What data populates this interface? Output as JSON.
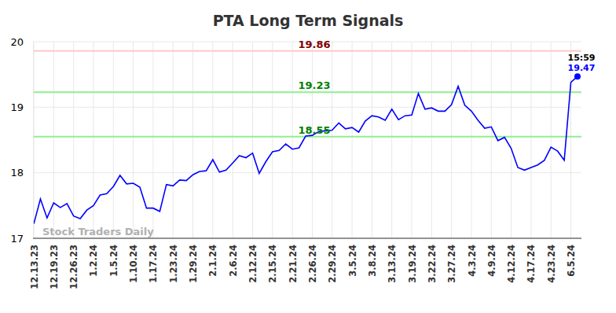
{
  "chart_data": {
    "type": "line",
    "title": "PTA Long Term Signals",
    "categories": [
      "12.13.23",
      null,
      null,
      "12.19.23",
      null,
      null,
      "12.26.23",
      null,
      null,
      "1.2.24",
      null,
      null,
      "1.5.24",
      null,
      null,
      "1.10.24",
      null,
      null,
      "1.17.24",
      null,
      null,
      "1.23.24",
      null,
      null,
      "1.29.24",
      null,
      null,
      "2.1.24",
      null,
      null,
      "2.6.24",
      null,
      null,
      "2.12.24",
      null,
      null,
      "2.15.24",
      null,
      null,
      "2.21.24",
      null,
      null,
      "2.26.24",
      null,
      null,
      "2.29.24",
      null,
      null,
      "3.5.24",
      null,
      null,
      "3.8.24",
      null,
      null,
      "3.13.24",
      null,
      null,
      "3.19.24",
      null,
      null,
      "3.22.24",
      null,
      null,
      "3.27.24",
      null,
      null,
      "4.3.24",
      null,
      null,
      "4.9.24",
      null,
      null,
      "4.12.24",
      null,
      null,
      "4.17.24",
      null,
      null,
      "4.23.24",
      null,
      null,
      "6.5.24",
      null
    ],
    "series": [
      {
        "name": "PTA",
        "color": "#0000ff",
        "values": [
          17.22,
          17.6,
          17.31,
          17.54,
          17.47,
          17.53,
          17.34,
          17.3,
          17.43,
          17.5,
          17.66,
          17.68,
          17.79,
          17.96,
          17.83,
          17.84,
          17.78,
          17.46,
          17.46,
          17.41,
          17.82,
          17.8,
          17.89,
          17.88,
          17.97,
          18.02,
          18.03,
          18.2,
          18.01,
          18.04,
          18.15,
          18.26,
          18.23,
          18.3,
          17.99,
          18.17,
          18.32,
          18.34,
          18.44,
          18.36,
          18.38,
          18.56,
          18.57,
          18.63,
          18.64,
          18.65,
          18.76,
          18.67,
          18.69,
          18.62,
          18.79,
          18.87,
          18.85,
          18.8,
          18.97,
          18.81,
          18.87,
          18.88,
          19.21,
          18.97,
          18.99,
          18.94,
          18.94,
          19.04,
          19.32,
          19.03,
          18.94,
          18.8,
          18.68,
          18.7,
          18.49,
          18.54,
          18.37,
          18.08,
          18.04,
          18.08,
          18.12,
          18.19,
          18.39,
          18.33,
          18.19,
          19.38,
          19.47
        ]
      }
    ],
    "ylim": [
      17,
      20
    ],
    "yticks": [
      17,
      18,
      19,
      20
    ],
    "grid": true,
    "reference_lines": [
      {
        "value": 19.86,
        "color": "#ffc8c8"
      },
      {
        "value": 19.23,
        "color": "#90ee90"
      },
      {
        "value": 18.55,
        "color": "#90ee90"
      }
    ],
    "annotations": [
      {
        "text": "15:59",
        "x": 82,
        "y": 19.47
      },
      {
        "text": "19.47",
        "x": 82,
        "y": 19.47
      }
    ],
    "watermark": "Stock Traders Daily"
  }
}
